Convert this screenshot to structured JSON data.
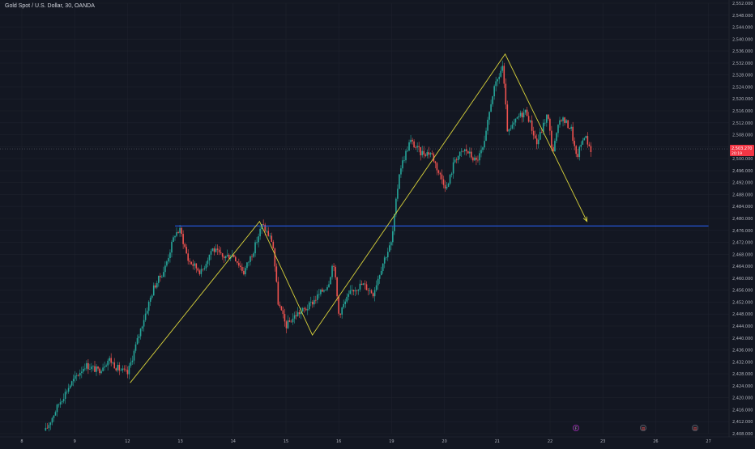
{
  "window": {
    "symbol_title": "Gold Spot / U.S. Dollar, 30, OANDA"
  },
  "colors": {
    "background": "#131722",
    "grid": "#1e222d",
    "axis_text": "#b2b5be",
    "bull": "#26a69a",
    "bear": "#ef5350",
    "pattern_line": "#d9d33b",
    "support_line": "#2962ff",
    "last_price_label_bg": "#f23645"
  },
  "price_label": {
    "price": "2,503.270",
    "countdown": "20:19"
  },
  "event_icons": [
    {
      "name": "flag-event-icon",
      "glyph": "F"
    },
    {
      "name": "calendar-event-icon",
      "glyph": "▤"
    },
    {
      "name": "calendar-event-icon",
      "glyph": "▤"
    }
  ],
  "chart_data": {
    "type": "candlestick",
    "title": "Gold Spot / U.S. Dollar, 30, OANDA",
    "ylim": [
      2408.0,
      2552.0
    ],
    "y_ticks": [
      "2,552.000",
      "2,548.000",
      "2,544.000",
      "2,540.000",
      "2,536.000",
      "2,532.000",
      "2,528.000",
      "2,524.000",
      "2,520.000",
      "2,516.000",
      "2,512.000",
      "2,508.000",
      "2,504.000",
      "2,500.000",
      "2,496.000",
      "2,492.000",
      "2,488.000",
      "2,484.000",
      "2,480.000",
      "2,476.000",
      "2,472.000",
      "2,468.000",
      "2,464.000",
      "2,460.000",
      "2,456.000",
      "2,452.000",
      "2,448.000",
      "2,444.000",
      "2,440.000",
      "2,436.000",
      "2,432.000",
      "2,428.000",
      "2,424.000",
      "2,420.000",
      "2,416.000",
      "2,412.000",
      "2,408.000"
    ],
    "x_ticks": [
      "8",
      "9",
      "12",
      "13",
      "14",
      "15",
      "16",
      "19",
      "20",
      "21",
      "22",
      "23",
      "26",
      "27"
    ],
    "x_tick_slots": [
      0,
      2,
      4,
      6,
      8,
      10,
      12,
      14,
      16,
      18,
      20,
      22,
      24,
      26
    ],
    "last_price": 2503.27,
    "support_level": 2477.5,
    "price_path": [
      [
        0.9,
        2409
      ],
      [
        1.4,
        2418
      ],
      [
        1.8,
        2424
      ],
      [
        2.4,
        2431
      ],
      [
        2.9,
        2429
      ],
      [
        3.3,
        2433
      ],
      [
        3.6,
        2430
      ],
      [
        4.0,
        2428
      ],
      [
        4.6,
        2446
      ],
      [
        5.0,
        2457
      ],
      [
        5.4,
        2463
      ],
      [
        5.8,
        2475
      ],
      [
        6.0,
        2476
      ],
      [
        6.3,
        2466
      ],
      [
        6.8,
        2462
      ],
      [
        7.2,
        2470
      ],
      [
        7.6,
        2467
      ],
      [
        8.0,
        2468
      ],
      [
        8.4,
        2462
      ],
      [
        8.8,
        2470
      ],
      [
        9.1,
        2478
      ],
      [
        9.5,
        2472
      ],
      [
        9.7,
        2452
      ],
      [
        10.0,
        2444
      ],
      [
        10.4,
        2448
      ],
      [
        10.8,
        2450
      ],
      [
        11.2,
        2454
      ],
      [
        11.6,
        2458
      ],
      [
        11.8,
        2466
      ],
      [
        12.0,
        2448
      ],
      [
        12.5,
        2456
      ],
      [
        12.9,
        2458
      ],
      [
        13.3,
        2455
      ],
      [
        13.7,
        2466
      ],
      [
        14.0,
        2472
      ],
      [
        14.3,
        2496
      ],
      [
        14.7,
        2506
      ],
      [
        15.1,
        2502
      ],
      [
        15.5,
        2502
      ],
      [
        15.8,
        2495
      ],
      [
        16.1,
        2490
      ],
      [
        16.4,
        2500
      ],
      [
        16.8,
        2503
      ],
      [
        17.2,
        2499
      ],
      [
        17.5,
        2504
      ],
      [
        17.8,
        2521
      ],
      [
        18.2,
        2531
      ],
      [
        18.4,
        2508
      ],
      [
        18.8,
        2514
      ],
      [
        19.1,
        2516
      ],
      [
        19.5,
        2505
      ],
      [
        19.9,
        2515
      ],
      [
        20.1,
        2502
      ],
      [
        20.4,
        2514
      ],
      [
        20.8,
        2510
      ],
      [
        21.0,
        2500
      ],
      [
        21.3,
        2508
      ],
      [
        21.6,
        2502
      ]
    ],
    "drawings": {
      "zigzag_pattern": [
        [
          4.1,
          2425.0
        ],
        [
          9.0,
          2479.0
        ],
        [
          11.0,
          2441.0
        ],
        [
          18.3,
          2535.0
        ],
        [
          21.4,
          2479.0
        ]
      ],
      "support_line_x_range": [
        5.8,
        26.0
      ]
    }
  }
}
